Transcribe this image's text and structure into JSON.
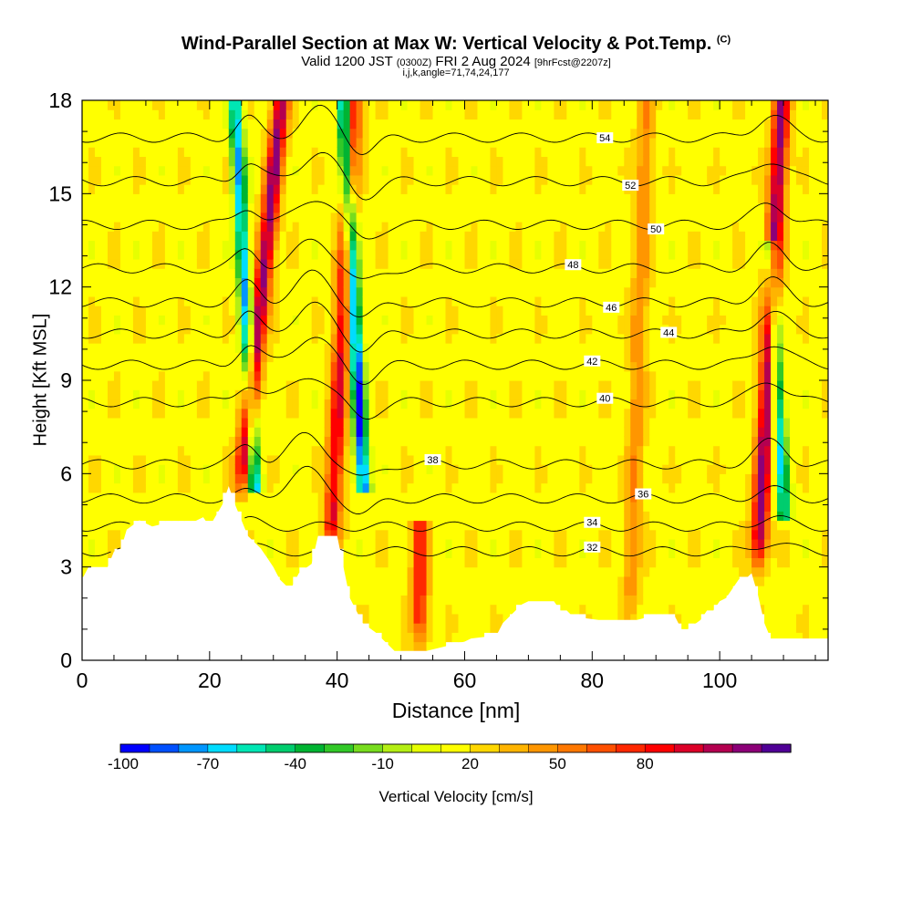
{
  "title": {
    "main": "Wind-Parallel Section at Max W: Vertical Velocity & Pot.Temp.",
    "copyright": "(C)",
    "valid_prefix": "Valid 1200 JST",
    "valid_utc": "(0300Z)",
    "valid_date": "FRI 2 Aug 2024",
    "forecast": "[9hrFcst@2207z]",
    "indices": "i,j,k,angle=71,74,24,177"
  },
  "chart_data": {
    "type": "heatmap",
    "xlabel": "Distance [nm]",
    "ylabel": "Height [Kft MSL]",
    "xlim": [
      0,
      117
    ],
    "ylim": [
      0,
      18
    ],
    "x_ticks": [
      0,
      20,
      40,
      60,
      80,
      100
    ],
    "y_ticks": [
      0,
      3,
      6,
      9,
      12,
      15,
      18
    ],
    "colorbar": {
      "label": "Vertical Velocity [cm/s]",
      "tick_labels": [
        "-100",
        "-70",
        "-40",
        "-10",
        "20",
        "50",
        "80"
      ],
      "tick_values": [
        -100,
        -70,
        -40,
        -10,
        20,
        50,
        80
      ],
      "colors": [
        "#0000ff",
        "#0050ff",
        "#0096ff",
        "#00dcff",
        "#00e6b4",
        "#00cd6e",
        "#00b432",
        "#32c828",
        "#78dc1e",
        "#b4ee14",
        "#e6ff00",
        "#ffff00",
        "#ffd700",
        "#ffb400",
        "#ff9600",
        "#ff7800",
        "#ff5000",
        "#ff2800",
        "#ff0000",
        "#dc0028",
        "#b40050",
        "#8c0078",
        "#500096"
      ]
    },
    "updrafts": [
      {
        "x": 25,
        "z_bottom": 5.5,
        "z_top": 18,
        "peak": 90,
        "tilt": 1
      },
      {
        "x": 39,
        "z_bottom": 3.5,
        "z_top": 18,
        "peak": 70,
        "tilt": 0.5
      },
      {
        "x": 106,
        "z_bottom": 3.0,
        "z_top": 18,
        "peak": 90,
        "tilt": 0.5
      },
      {
        "x": 53,
        "z_bottom": 0.5,
        "z_top": 4,
        "peak": 60,
        "tilt": 0
      },
      {
        "x": 86,
        "z_bottom": 1.5,
        "z_top": 18,
        "peak": 30,
        "tilt": 0.3
      }
    ],
    "downdrafts": [
      {
        "x": 24,
        "z_bottom": 6,
        "z_top": 18,
        "peak": -80
      },
      {
        "x": 41,
        "z_bottom": 6,
        "z_top": 18,
        "peak": -100
      },
      {
        "x": 108,
        "z_bottom": 5,
        "z_top": 13,
        "peak": -70
      }
    ],
    "theta_contours": [
      {
        "label": "32",
        "z_left": 3.5,
        "label_x": 80
      },
      {
        "label": "34",
        "z_left": 4.3,
        "label_x": 80
      },
      {
        "label": "36",
        "z_left": 5.2,
        "label_x": 88
      },
      {
        "label": "38",
        "z_left": 6.3,
        "label_x": 55
      },
      {
        "label": "40",
        "z_left": 8.3,
        "label_x": 82
      },
      {
        "label": "42",
        "z_left": 9.5,
        "label_x": 80
      },
      {
        "label": "44",
        "z_left": 10.5,
        "label_x": 92
      },
      {
        "label": "46",
        "z_left": 11.5,
        "label_x": 83
      },
      {
        "label": "48",
        "z_left": 12.6,
        "label_x": 77
      },
      {
        "label": "50",
        "z_left": 14.0,
        "label_x": 90
      },
      {
        "label": "52",
        "z_left": 15.4,
        "label_x": 86
      },
      {
        "label": "54",
        "z_left": 16.8,
        "label_x": 82
      }
    ],
    "terrain": [
      [
        0,
        2.6
      ],
      [
        1,
        3.0
      ],
      [
        4,
        3.0
      ],
      [
        5,
        3.5
      ],
      [
        6,
        3.5
      ],
      [
        7,
        4.2
      ],
      [
        9,
        4.5
      ],
      [
        11,
        4.3
      ],
      [
        13,
        4.4
      ],
      [
        17,
        4.4
      ],
      [
        19,
        4.6
      ],
      [
        20,
        4.3
      ],
      [
        22,
        5.0
      ],
      [
        23,
        5.6
      ],
      [
        24,
        5.0
      ],
      [
        26,
        4.0
      ],
      [
        28,
        3.6
      ],
      [
        29,
        3.3
      ],
      [
        30,
        3.0
      ],
      [
        31,
        2.6
      ],
      [
        32,
        2.4
      ],
      [
        33,
        2.4
      ],
      [
        34,
        2.8
      ],
      [
        36,
        3.1
      ],
      [
        37,
        4.0
      ],
      [
        40,
        4.0
      ],
      [
        41,
        3.0
      ],
      [
        42,
        2.0
      ],
      [
        43,
        1.6
      ],
      [
        44,
        1.2
      ],
      [
        46,
        0.9
      ],
      [
        48,
        0.5
      ],
      [
        49,
        0.3
      ],
      [
        54,
        0.3
      ],
      [
        56,
        0.4
      ],
      [
        60,
        0.6
      ],
      [
        61,
        0.7
      ],
      [
        65,
        0.8
      ],
      [
        66,
        1.2
      ],
      [
        68,
        1.6
      ],
      [
        69,
        1.8
      ],
      [
        70,
        1.9
      ],
      [
        74,
        1.9
      ],
      [
        75,
        1.6
      ],
      [
        76,
        1.6
      ],
      [
        77,
        1.4
      ],
      [
        81,
        1.3
      ],
      [
        87,
        1.3
      ],
      [
        89,
        1.4
      ],
      [
        91,
        1.4
      ],
      [
        93,
        1.4
      ],
      [
        94,
        1.0
      ],
      [
        95,
        1.0
      ],
      [
        97,
        1.3
      ],
      [
        98,
        1.6
      ],
      [
        99,
        1.6
      ],
      [
        100,
        1.9
      ],
      [
        101,
        2.0
      ],
      [
        102,
        2.3
      ],
      [
        103,
        2.6
      ],
      [
        104,
        2.6
      ],
      [
        105,
        2.8
      ],
      [
        106,
        2.1
      ],
      [
        107,
        1.2
      ],
      [
        108,
        0.7
      ],
      [
        110,
        0.7
      ],
      [
        117,
        0.7
      ]
    ]
  }
}
